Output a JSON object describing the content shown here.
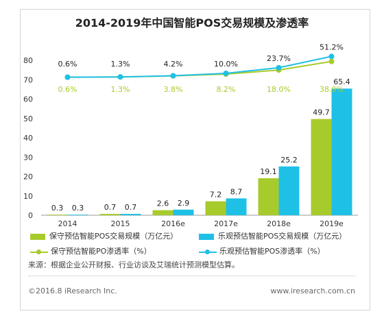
{
  "chart_data": {
    "type": "bar",
    "title": "2014-2019年中国智能POS交易规模及渗透率",
    "categories": [
      "2014",
      "2015",
      "2016e",
      "2017e",
      "2018e",
      "2019e"
    ],
    "ylim": [
      0,
      80
    ],
    "yticks": [
      "0",
      "10",
      "20",
      "30",
      "40",
      "50",
      "60",
      "70",
      "80"
    ],
    "series": [
      {
        "name": "保守预估智能POS交易规模（万亿元）",
        "color": "#a8cb2c",
        "values": [
          0.3,
          0.7,
          2.6,
          7.2,
          19.1,
          49.7
        ],
        "labels": [
          "0.3",
          "0.7",
          "2.6",
          "7.2",
          "19.1",
          "49.7"
        ]
      },
      {
        "name": "乐观预估智能POS交易规模（万亿元）",
        "color": "#1fc0e6",
        "values": [
          0.3,
          0.7,
          2.9,
          8.7,
          25.2,
          65.4
        ],
        "labels": [
          "0.3",
          "0.7",
          "2.9",
          "8.7",
          "25.2",
          "65.4"
        ]
      }
    ],
    "lines": [
      {
        "name": "保守预估智能PO渗透率（%）",
        "color": "#a8cb2c",
        "values": [
          0.6,
          1.3,
          3.8,
          8.2,
          18.0,
          38.9
        ],
        "labels": [
          "0.6%",
          "1.3%",
          "3.8%",
          "8.2%",
          "18.0%",
          "38.9%"
        ]
      },
      {
        "name": "乐观预估智能POS渗透率（%）",
        "color": "#1fc0e6",
        "values": [
          0.6,
          1.3,
          4.2,
          10.0,
          23.7,
          51.2
        ],
        "labels": [
          "0.6%",
          "1.3%",
          "4.2%",
          "10.0%",
          "23.7%",
          "51.2%"
        ]
      }
    ],
    "grid": false,
    "legend_position": "bottom"
  },
  "source": "来源：根据企业公开财报、行业访谈及艾瑞统计预测模型估算。",
  "footer_left": "©2016.8 iResearch Inc.",
  "footer_right": "www.iresearch.com.cn"
}
